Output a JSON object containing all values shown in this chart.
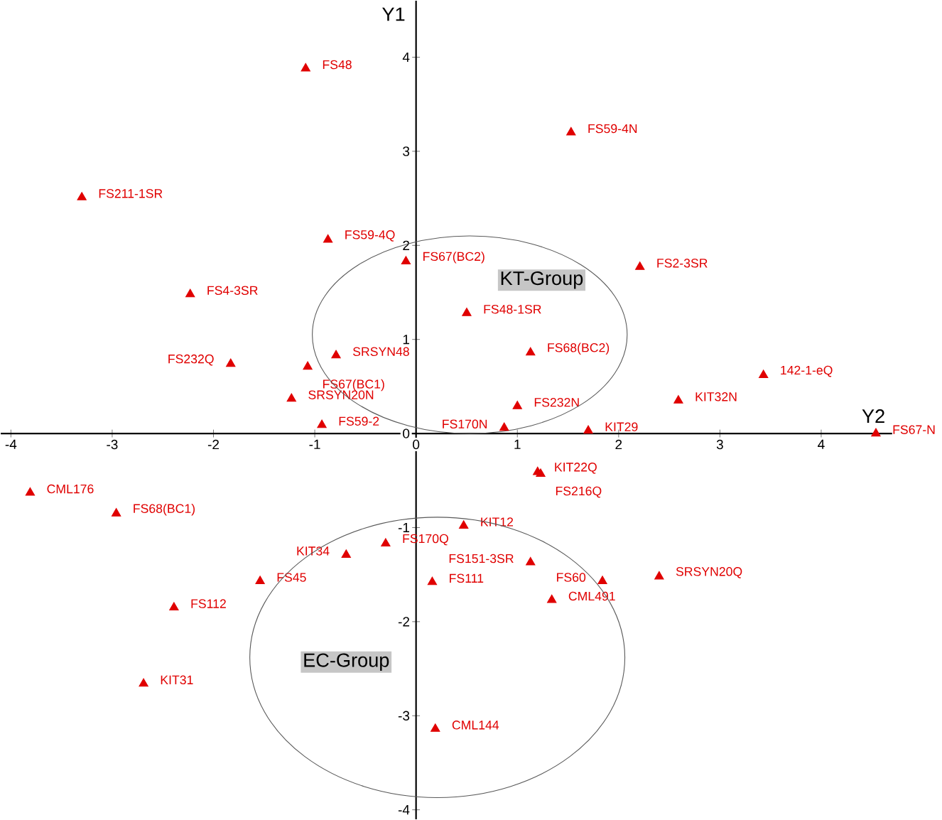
{
  "chart_data": {
    "type": "scatter",
    "xlabel": "Y2",
    "ylabel": "Y1",
    "xlim": [
      -4.1,
      4.7
    ],
    "ylim": [
      -4.1,
      4.6
    ],
    "xticks": [
      -4,
      -3,
      -2,
      -1,
      0,
      1,
      2,
      3,
      4
    ],
    "yticks": [
      -4,
      -3,
      -2,
      -1,
      0,
      1,
      2,
      3,
      4
    ],
    "marker": "triangle",
    "annotations": [
      "KT-Group",
      "EC-Group"
    ],
    "series": [
      {
        "name": "FS48",
        "color": "#e00000",
        "x": [
          -1.09
        ],
        "values": [
          3.88
        ]
      },
      {
        "name": "FS59-4N",
        "color": "#e00000",
        "x": [
          1.53
        ],
        "values": [
          3.2
        ]
      },
      {
        "name": "FS211-1SR",
        "color": "#e00000",
        "x": [
          -3.3
        ],
        "values": [
          2.51
        ]
      },
      {
        "name": "FS59-4Q",
        "color": "#e00000",
        "x": [
          -0.87
        ],
        "values": [
          2.06
        ]
      },
      {
        "name": "FS67(BC2)",
        "color": "#e00000",
        "x": [
          -0.1
        ],
        "values": [
          1.83
        ]
      },
      {
        "name": "FS2-3SR",
        "color": "#e00000",
        "x": [
          2.21
        ],
        "values": [
          1.77
        ]
      },
      {
        "name": "FS4-3SR",
        "color": "#e00000",
        "x": [
          -2.23
        ],
        "values": [
          1.48
        ]
      },
      {
        "name": "FS48-1SR",
        "color": "#e00000",
        "x": [
          0.5
        ],
        "values": [
          1.28
        ]
      },
      {
        "name": "SRSYN48",
        "color": "#e00000",
        "x": [
          -0.79
        ],
        "values": [
          0.83
        ]
      },
      {
        "name": "FS67(BC1)",
        "color": "#e00000",
        "x": [
          -1.07
        ],
        "values": [
          0.71
        ]
      },
      {
        "name": "FS232Q",
        "color": "#e00000",
        "x": [
          -1.83
        ],
        "values": [
          0.74
        ]
      },
      {
        "name": "FS68(BC2)",
        "color": "#e00000",
        "x": [
          1.13
        ],
        "values": [
          0.86
        ]
      },
      {
        "name": "142-1-eQ",
        "color": "#e00000",
        "x": [
          3.43
        ],
        "values": [
          0.62
        ]
      },
      {
        "name": "SRSYN20N",
        "color": "#e00000",
        "x": [
          -1.23
        ],
        "values": [
          0.37
        ]
      },
      {
        "name": "FS232N",
        "color": "#e00000",
        "x": [
          1.0
        ],
        "values": [
          0.29
        ]
      },
      {
        "name": "KIT32N",
        "color": "#e00000",
        "x": [
          2.59
        ],
        "values": [
          0.35
        ]
      },
      {
        "name": "FS59-2",
        "color": "#e00000",
        "x": [
          -0.93
        ],
        "values": [
          0.09
        ]
      },
      {
        "name": "FS170N",
        "color": "#e00000",
        "x": [
          0.87
        ],
        "values": [
          0.06
        ]
      },
      {
        "name": "KIT29",
        "color": "#e00000",
        "x": [
          1.7
        ],
        "values": [
          0.03
        ]
      },
      {
        "name": "FS67-N",
        "color": "#e00000",
        "x": [
          4.54
        ],
        "values": [
          0.0
        ]
      },
      {
        "name": "KIT22Q",
        "color": "#e00000",
        "x": [
          1.2
        ],
        "values": [
          -0.41
        ]
      },
      {
        "name": "FS216Q",
        "color": "#e00000",
        "x": [
          1.23
        ],
        "values": [
          -0.43
        ]
      },
      {
        "name": "CML176",
        "color": "#e00000",
        "x": [
          -3.81
        ],
        "values": [
          -0.63
        ]
      },
      {
        "name": "FS68(BC1)",
        "color": "#e00000",
        "x": [
          -2.96
        ],
        "values": [
          -0.85
        ]
      },
      {
        "name": "KIT12",
        "color": "#e00000",
        "x": [
          0.47
        ],
        "values": [
          -0.98
        ]
      },
      {
        "name": "FS170Q",
        "color": "#e00000",
        "x": [
          -0.3
        ],
        "values": [
          -1.17
        ]
      },
      {
        "name": "KIT34",
        "color": "#e00000",
        "x": [
          -0.69
        ],
        "values": [
          -1.29
        ]
      },
      {
        "name": "FS45",
        "color": "#e00000",
        "x": [
          -1.54
        ],
        "values": [
          -1.57
        ]
      },
      {
        "name": "FS151-3SR",
        "color": "#e00000",
        "x": [
          1.13
        ],
        "values": [
          -1.37
        ]
      },
      {
        "name": "FS111",
        "color": "#e00000",
        "x": [
          0.16
        ],
        "values": [
          -1.58
        ]
      },
      {
        "name": "FS60",
        "color": "#e00000",
        "x": [
          1.84
        ],
        "values": [
          -1.57
        ]
      },
      {
        "name": "SRSYN20Q",
        "color": "#e00000",
        "x": [
          2.4
        ],
        "values": [
          -1.52
        ]
      },
      {
        "name": "CML491",
        "color": "#e00000",
        "x": [
          1.34
        ],
        "values": [
          -1.77
        ]
      },
      {
        "name": "FS112",
        "color": "#e00000",
        "x": [
          -2.39
        ],
        "values": [
          -1.85
        ]
      },
      {
        "name": "KIT31",
        "color": "#e00000",
        "x": [
          -2.69
        ],
        "values": [
          -2.66
        ]
      },
      {
        "name": "CML144",
        "color": "#e00000",
        "x": [
          0.19
        ],
        "values": [
          -3.14
        ]
      }
    ]
  }
}
